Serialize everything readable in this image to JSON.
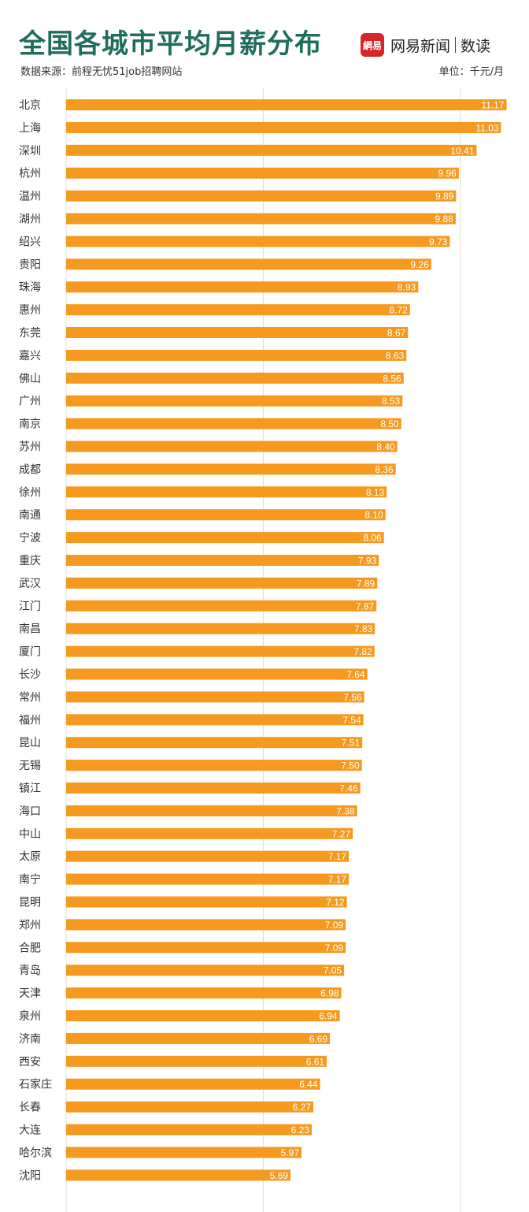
{
  "header": {
    "title": "全国各城市平均月薪分布",
    "logo_text": "網易",
    "brand": "网易新闻",
    "brand_sub": "数读",
    "source": "数据来源：前程无忧51job招聘网站",
    "unit": "单位：千元/月"
  },
  "colors": {
    "bar": "#f59a1f",
    "grid": "#dddddd",
    "title": "#1f6e5c"
  },
  "chart_data": {
    "type": "bar",
    "orientation": "horizontal",
    "categories": [
      "北京",
      "上海",
      "深圳",
      "杭州",
      "温州",
      "湖州",
      "绍兴",
      "贵阳",
      "珠海",
      "惠州",
      "东莞",
      "嘉兴",
      "佛山",
      "广州",
      "南京",
      "苏州",
      "成都",
      "徐州",
      "南通",
      "宁波",
      "重庆",
      "武汉",
      "江门",
      "南昌",
      "厦门",
      "长沙",
      "常州",
      "福州",
      "昆山",
      "无锡",
      "镇江",
      "海口",
      "中山",
      "太原",
      "南宁",
      "昆明",
      "郑州",
      "合肥",
      "青岛",
      "天津",
      "泉州",
      "济南",
      "西安",
      "石家庄",
      "长春",
      "大连",
      "哈尔滨",
      "沈阳"
    ],
    "values": [
      11.17,
      11.03,
      10.41,
      9.96,
      9.89,
      9.88,
      9.73,
      9.26,
      8.93,
      8.72,
      8.67,
      8.63,
      8.56,
      8.53,
      8.5,
      8.4,
      8.36,
      8.13,
      8.1,
      8.06,
      7.93,
      7.89,
      7.87,
      7.83,
      7.82,
      7.64,
      7.56,
      7.54,
      7.51,
      7.5,
      7.46,
      7.38,
      7.27,
      7.17,
      7.17,
      7.12,
      7.09,
      7.09,
      7.05,
      6.98,
      6.94,
      6.69,
      6.61,
      6.44,
      6.27,
      6.23,
      5.97,
      5.69
    ],
    "value_labels": [
      "11.17",
      "11.03",
      "10.41",
      "9.96",
      "9.89",
      "9.88",
      "9.73",
      "9.26",
      "8.93",
      "8.72",
      "8.67",
      "8.63",
      "8.56",
      "8.53",
      "8.50",
      "8.40",
      "8.36",
      "8.13",
      "8.10",
      "8.06",
      "7.93",
      "7.89",
      "7.87",
      "7.83",
      "7.82",
      "7.64",
      "7.56",
      "7.54",
      "7.51",
      "7.50",
      "7.46",
      "7.38",
      "7.27",
      "7.17",
      "7.17",
      "7.12",
      "7.09",
      "7.09",
      "7.05",
      "6.98",
      "6.94",
      "6.69",
      "6.61",
      "6.44",
      "6.27",
      "6.23",
      "5.97",
      "5.69"
    ],
    "xlim": [
      0,
      11.5
    ],
    "grid": true,
    "gridlines": [
      5,
      10
    ],
    "title": "全国各城市平均月薪分布",
    "xlabel": "",
    "ylabel": ""
  }
}
